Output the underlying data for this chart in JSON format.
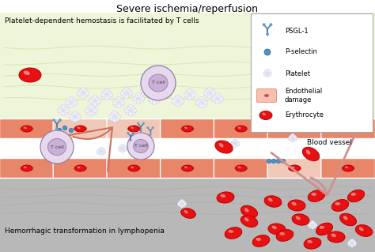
{
  "title": "Severe ischemia/reperfusion",
  "top_label": "Platelet-dependent hemostasis is facilitated by T cells",
  "bottom_label": "Hemorrhagic transformation in lymphopenia",
  "blood_vessel_label": "Blood vessel",
  "legend_items": [
    "PSGL-1",
    "P-selectin",
    "Platelet",
    "Endothelial\ndamage",
    "Erythrocyte"
  ],
  "bg_top": "#eef5d8",
  "bg_middle": "#ffffff",
  "bg_bottom": "#b8b8b8",
  "vessel_color": "#e8866a",
  "vessel_light": "#f5b8a0",
  "vessel_damaged": "#f0c8b8",
  "erythrocyte_color": "#e81010",
  "erythrocyte_outline": "#bb0000",
  "tcell_outer": "#ddd0e8",
  "tcell_inner": "#c8b0d8",
  "tcell_outline": "#9080a8",
  "psgl_color": "#4a7aaa",
  "pselectin_color": "#5090c0",
  "platelet_fill": "#f0f0f8",
  "platelet_edge": "#c0c0d8",
  "legend_bg": "#ffffff",
  "wave_top_color": "#c8d898",
  "wave_bot_color": "#a8a8a8",
  "arrow_color": "#d07060"
}
